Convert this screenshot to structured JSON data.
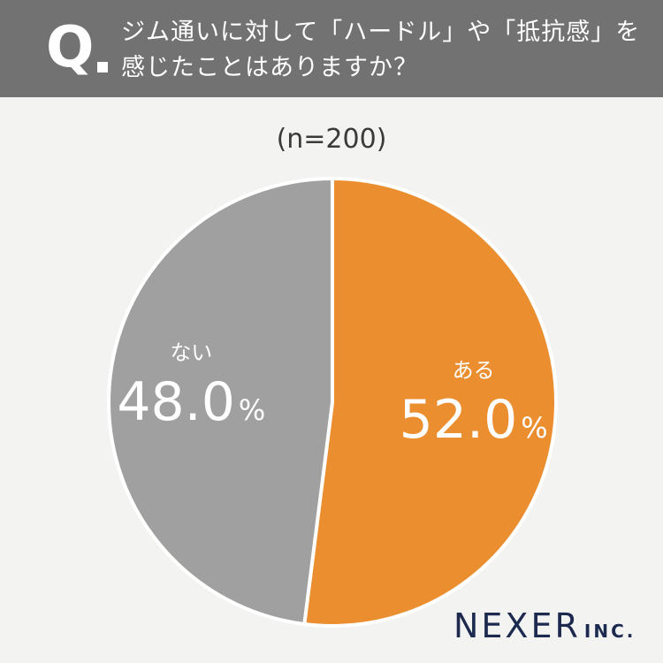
{
  "header": {
    "q_mark": "Q",
    "question_line1": "ジム通いに対して「ハードル」や「抵抗感」を",
    "question_line2": "感じたことはありますか？"
  },
  "sample_size": "(n=200)",
  "chart_data": {
    "type": "pie",
    "start_angle_deg": 0,
    "direction": "clockwise",
    "slices": [
      {
        "label": "ある",
        "value": 52.0,
        "value_text": "52.0",
        "unit": "%",
        "color": "#eb8e2f"
      },
      {
        "label": "ない",
        "value": 48.0,
        "value_text": "48.0",
        "unit": "%",
        "color": "#a0a0a0"
      }
    ]
  },
  "colors": {
    "header_bg": "#727272",
    "page_bg": "#f3f3f2",
    "slice_separator": "#ffffff",
    "logo": "#1b2a4e"
  },
  "logo": {
    "name": "NEXER",
    "suffix": "INC."
  }
}
